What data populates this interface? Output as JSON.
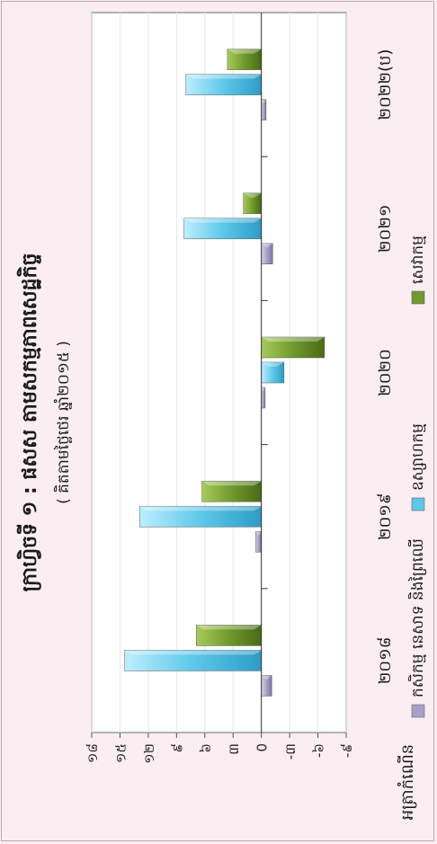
{
  "chart_data": {
    "type": "bar",
    "orientation": "horizontal, page rotated 90° counter-clockwise",
    "title": "ក្រាហ្វិចទី ១ : ផសស តាមសកម្មភាពសេដ្ឋកិច្ច",
    "subtitle": "( គិតតាមថ្លៃថេរ ឆ្នាំ២០១៥ )",
    "ylabel": "អត្រាកំណើន",
    "categories": [
      "២០១៨",
      "២០១៩",
      "២០២០",
      "២០២១",
      "២០២២(ប)"
    ],
    "value_ticks": [
      "-៩",
      "-៦",
      "-៣",
      "0",
      "៣",
      "៦",
      "៩",
      "១២",
      "១៥",
      "១៨"
    ],
    "ylim": [
      -9,
      18
    ],
    "grid": true,
    "legend_position": "bottom",
    "series": [
      {
        "name": "កសិកម្ម នេសាទ និងព្រៃឈើ",
        "color": "#a9a0c9",
        "values": [
          -1.1,
          0.6,
          -0.4,
          -1.2,
          -0.5
        ]
      },
      {
        "name": "ឧស្សាហកម្ម",
        "color": "#5ec8ea",
        "values": [
          14.5,
          12.9,
          -2.4,
          8.2,
          8.0
        ]
      },
      {
        "name": "សេវាកម្ម",
        "color": "#6f9a2c",
        "values": [
          6.9,
          6.3,
          -6.7,
          1.9,
          3.6
        ]
      }
    ]
  }
}
